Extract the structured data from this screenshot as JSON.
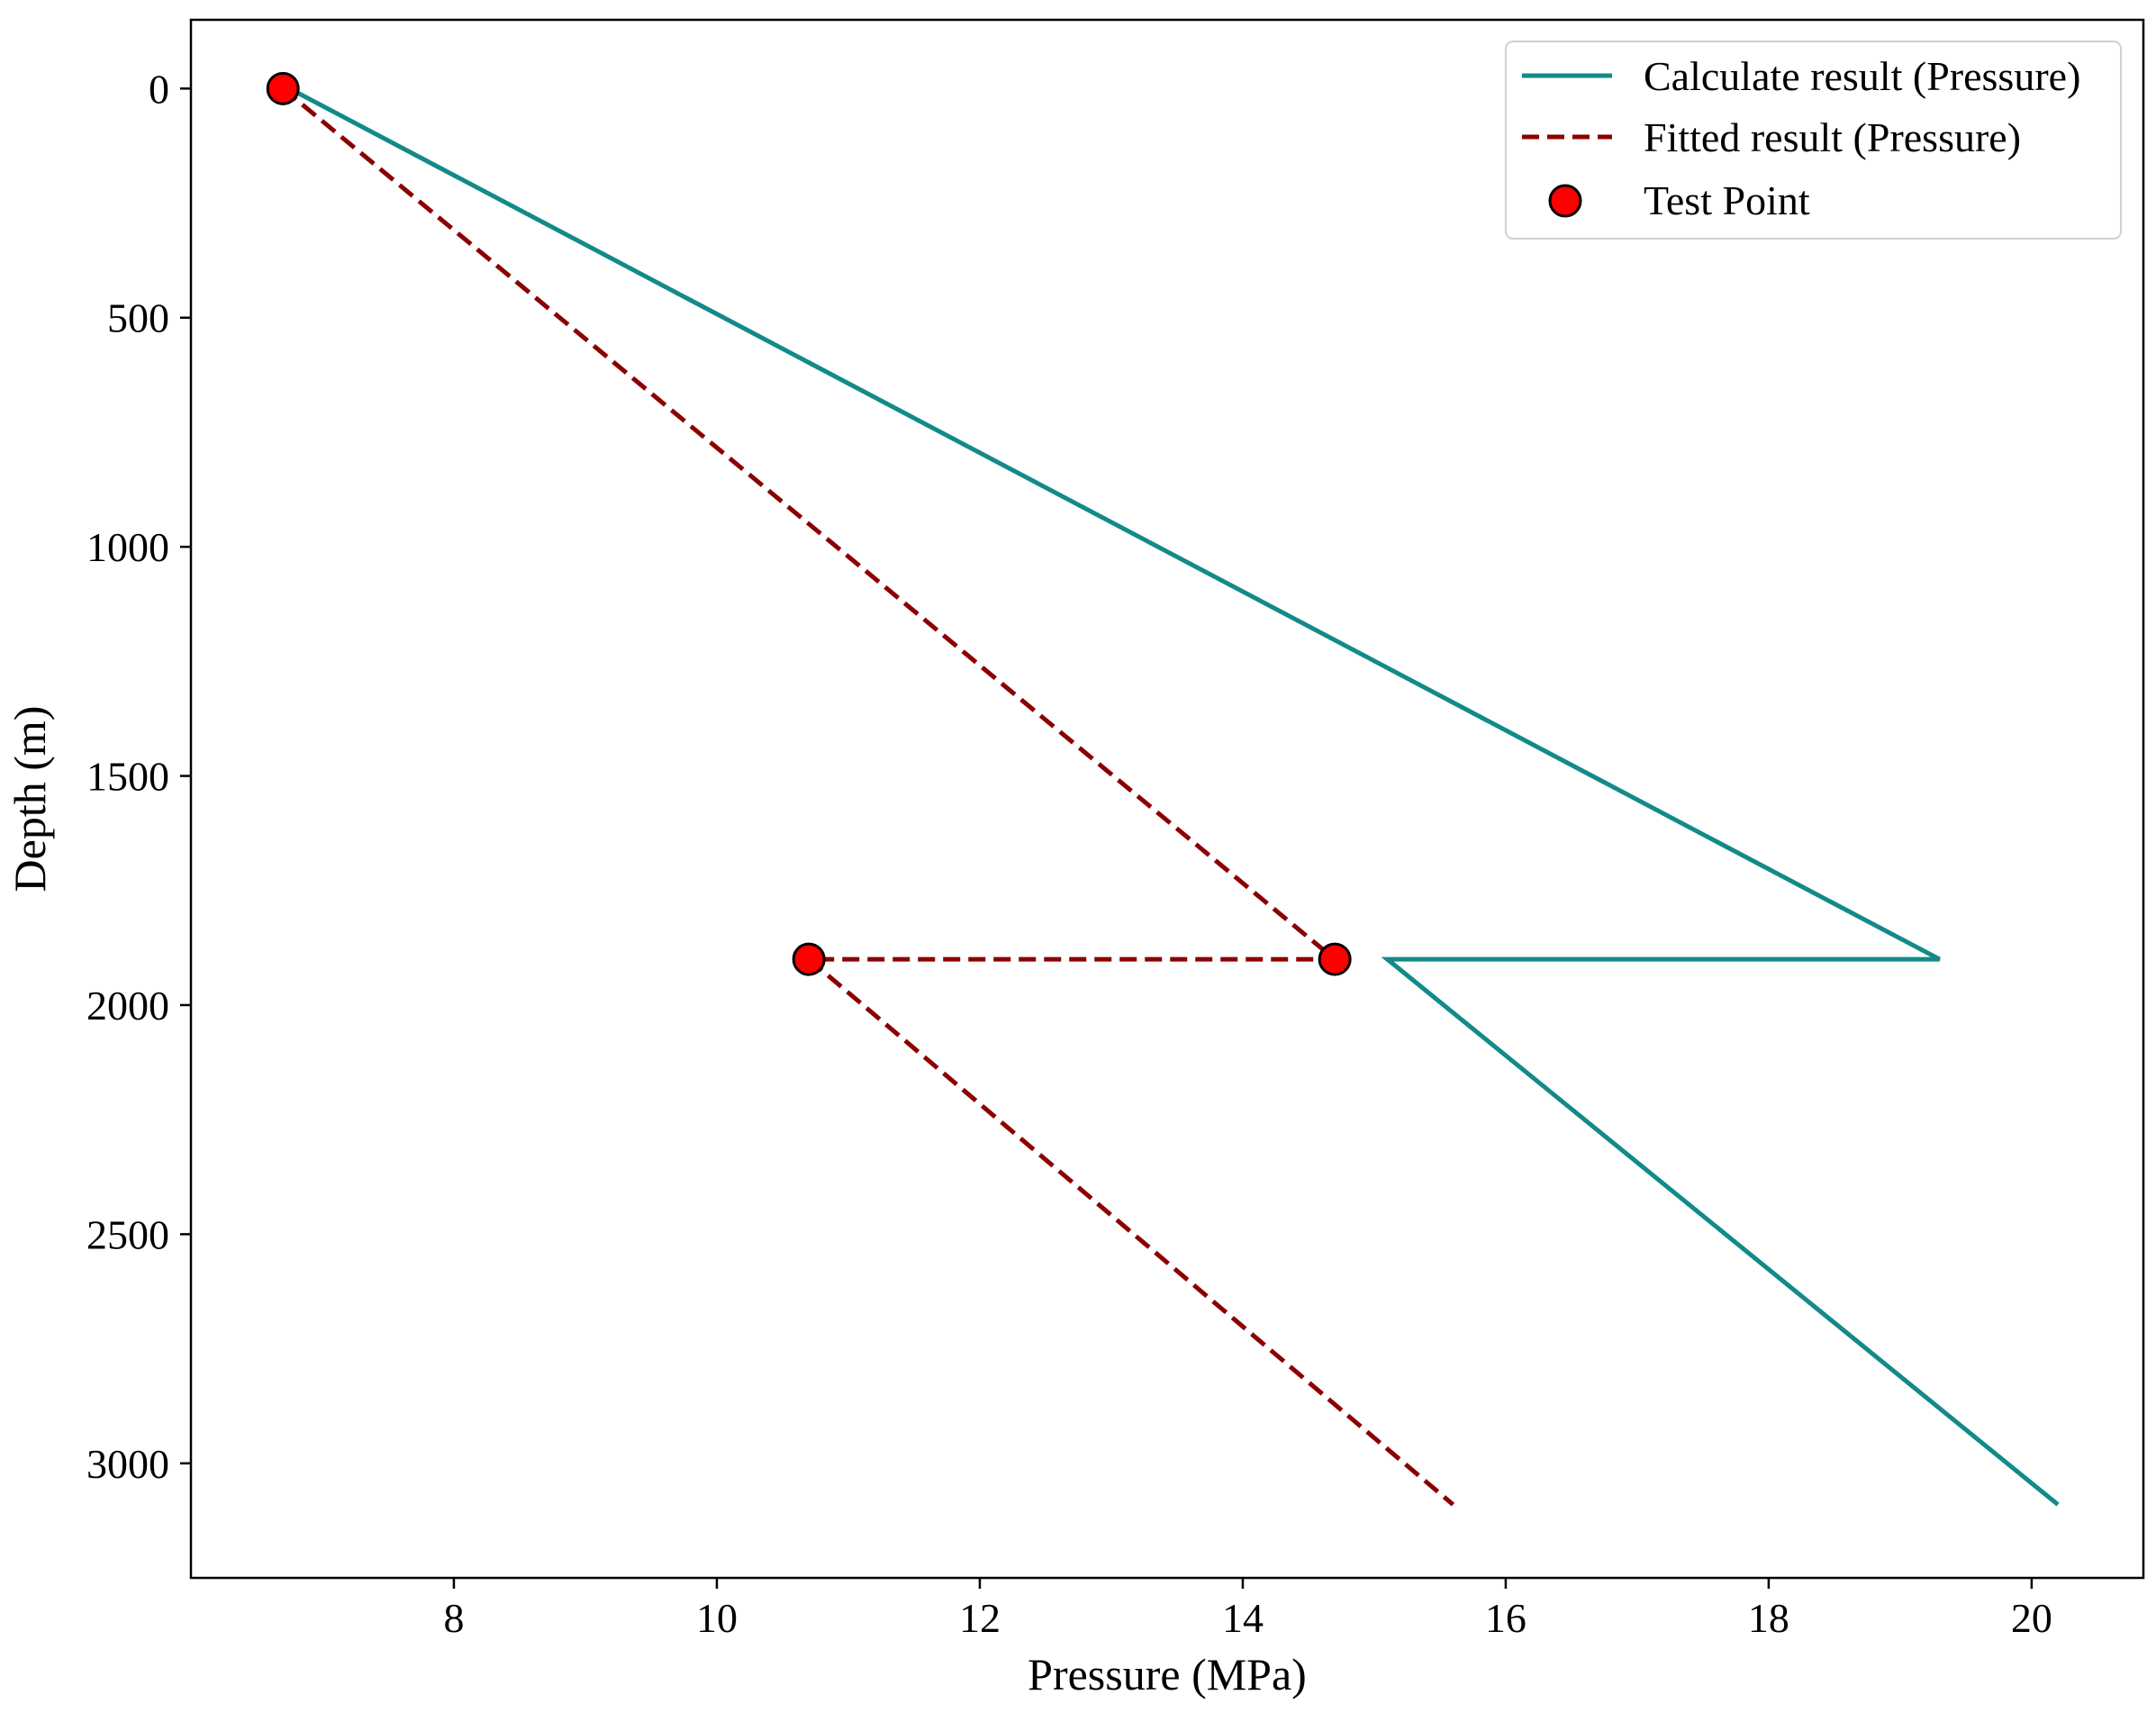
{
  "chart_data": {
    "type": "line",
    "title": "",
    "xlabel": "Pressure (MPa)",
    "ylabel": "Depth (m)",
    "xlim": [
      6.0,
      20.85
    ],
    "ylim": [
      3250,
      -150
    ],
    "y_inverted": true,
    "grid": false,
    "legend_position": "top-right",
    "x_ticks": [
      8,
      10,
      12,
      14,
      16,
      18,
      20
    ],
    "y_ticks": [
      0,
      500,
      1000,
      1500,
      2000,
      2500,
      3000
    ],
    "series": [
      {
        "name": "Calculate result (Pressure)",
        "style": "solid",
        "color": "#138a8a",
        "points": [
          [
            6.75,
            0
          ],
          [
            19.3,
            1900
          ],
          [
            15.1,
            1900
          ],
          [
            20.2,
            3090
          ]
        ]
      },
      {
        "name": "Fitted result (Pressure)",
        "style": "dashed",
        "color": "#8b0000",
        "points": [
          [
            6.7,
            0
          ],
          [
            14.7,
            1900
          ],
          [
            10.7,
            1900
          ],
          [
            15.6,
            3090
          ]
        ]
      },
      {
        "name": "Test Point",
        "style": "marker",
        "color": "#ff0000",
        "edge_color": "#000000",
        "points": [
          [
            6.7,
            0
          ],
          [
            14.7,
            1900
          ],
          [
            10.7,
            1900
          ]
        ]
      }
    ]
  }
}
